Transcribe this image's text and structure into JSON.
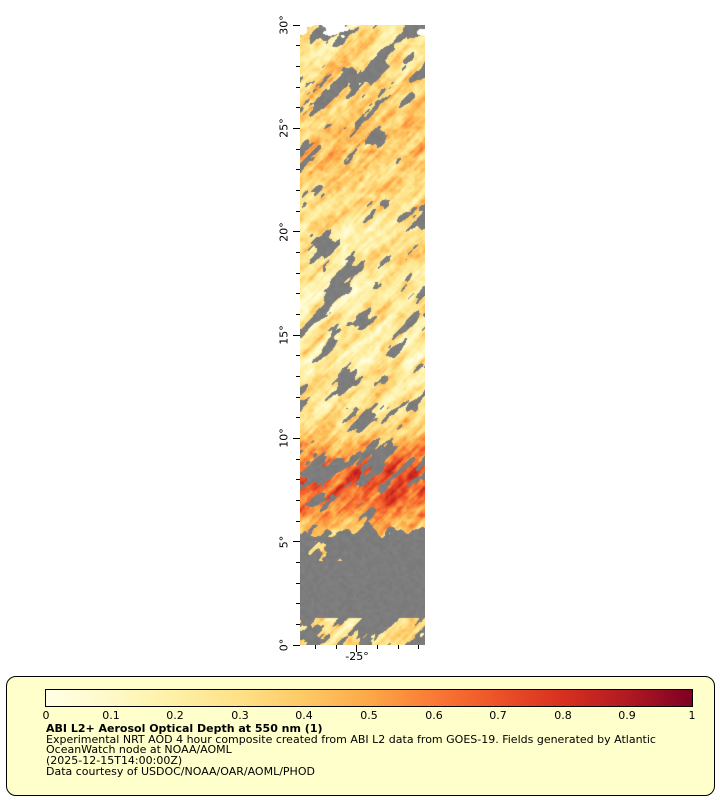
{
  "map": {
    "no_data_color": "#7D7D7D",
    "lat_range": [
      0,
      30
    ],
    "lon_range": [
      -27.75,
      -21.7
    ],
    "y_ticks": [
      {
        "label": "30°",
        "lat": 30
      },
      {
        "label": "25°",
        "lat": 25
      },
      {
        "label": "20°",
        "lat": 20
      },
      {
        "label": "15°",
        "lat": 15
      },
      {
        "label": "10°",
        "lat": 10
      },
      {
        "label": "5°",
        "lat": 5
      },
      {
        "label": "0°",
        "lat": 0
      }
    ],
    "x_ticks": [
      {
        "label": "-25°",
        "lon": -25
      }
    ],
    "colormap": [
      {
        "value": 0.0,
        "color": "#FFFFE5"
      },
      {
        "value": 0.1,
        "color": "#FFF9C8"
      },
      {
        "value": 0.2,
        "color": "#FEF0A5"
      },
      {
        "value": 0.3,
        "color": "#FEE187"
      },
      {
        "value": 0.4,
        "color": "#FEC965"
      },
      {
        "value": 0.5,
        "color": "#FDA847"
      },
      {
        "value": 0.6,
        "color": "#FA7A35"
      },
      {
        "value": 0.7,
        "color": "#EC5228"
      },
      {
        "value": 0.8,
        "color": "#D73020"
      },
      {
        "value": 0.9,
        "color": "#B01A22"
      },
      {
        "value": 1.0,
        "color": "#7E0023"
      }
    ]
  },
  "legend": {
    "background": "#FFFFCC",
    "border_color": "#000000",
    "colorbar_ticks": [
      "0",
      "0.1",
      "0.2",
      "0.3",
      "0.4",
      "0.5",
      "0.6",
      "0.7",
      "0.8",
      "0.9",
      "1"
    ],
    "title": "ABI L2+ Aerosol Optical Depth at 550 nm (1)",
    "description_line1": "Experimental NRT AOD 4 hour composite created from ABI L2 data from GOES-19. Fields generated by Atlantic",
    "description_line2": "OceanWatch node at NOAA/AOML",
    "timestamp": "(2025-12-15T14:00:00Z)",
    "courtesy": "Data courtesy of USDOC/NOAA/OAR/AOML/PHOD"
  },
  "chart_data": {
    "type": "heatmap",
    "title": "ABI L2+ Aerosol Optical Depth at 550 nm (1)",
    "variable": "Aerosol Optical Depth at 550 nm",
    "value_range": [
      0,
      1
    ],
    "colorbar_tick_values": [
      0,
      0.1,
      0.2,
      0.3,
      0.4,
      0.5,
      0.6,
      0.7,
      0.8,
      0.9,
      1
    ],
    "x_axis": {
      "tick_labels": [
        "-25°"
      ],
      "lon_range": [
        -27.75,
        -21.7
      ]
    },
    "y_axis": {
      "tick_labels": [
        "30°",
        "25°",
        "20°",
        "15°",
        "10°",
        "5°",
        "0°"
      ],
      "lat_range": [
        0,
        30
      ]
    },
    "colormap_stops": [
      "#FFFFE5",
      "#FFF9C8",
      "#FEF0A5",
      "#FEE187",
      "#FEC965",
      "#FDA847",
      "#FA7A35",
      "#EC5228",
      "#D73020",
      "#B01A22",
      "#7E0023"
    ],
    "no_data_color": "#7D7D7D",
    "depicted_features": [
      "Narrow vertical swath of AOD data near 25W spanning 0N to 30N",
      "Diagonal streaky field of mostly low-to-moderate AOD 0.2 to 0.5 (pale yellow to orange) from 10N to 30N",
      "Scattered gray no-data (cloud) patches throughout the swath",
      "High AOD dust plume 0.5 to 0.9 (orange to dark red) between about 6N and 10N",
      "Large contiguous gray no-data region south of about 5.5N with a few colored data patches near 0 to 1N"
    ]
  }
}
